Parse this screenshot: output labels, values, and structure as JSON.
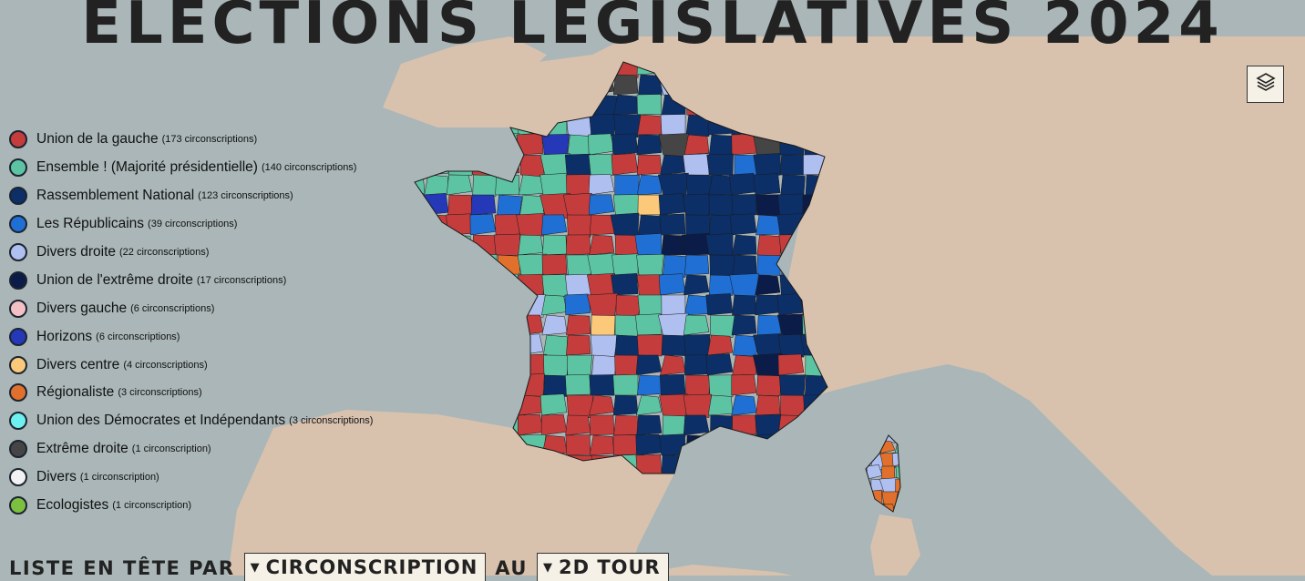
{
  "title": "ÉLECTIONS LÉGISLATIVES 2024",
  "icons": {
    "layers": "layers-icon"
  },
  "colors": {
    "sea": "#aab6b7",
    "land": "#d8c2ae",
    "department_border": "#1a1a1a"
  },
  "legend": [
    {
      "name": "Union de la gauche",
      "count": "(173 circonscriptions)",
      "color": "#c43c3c"
    },
    {
      "name": "Ensemble ! (Majorité présidentielle)",
      "count": "(140 circonscriptions)",
      "color": "#5cc4a2"
    },
    {
      "name": "Rassemblement National",
      "count": "(123 circonscriptions)",
      "color": "#0c2f68"
    },
    {
      "name": "Les Républicains",
      "count": "(39 circonscriptions)",
      "color": "#1f6fd4"
    },
    {
      "name": "Divers droite",
      "count": "(22 circonscriptions)",
      "color": "#aebff0"
    },
    {
      "name": "Union de l'extrême droite",
      "count": "(17 circonscriptions)",
      "color": "#0c1c48"
    },
    {
      "name": "Divers gauche",
      "count": "(6 circonscriptions)",
      "color": "#f3c0c4"
    },
    {
      "name": "Horizons",
      "count": "(6 circonscriptions)",
      "color": "#2438b8"
    },
    {
      "name": "Divers centre",
      "count": "(4 circonscriptions)",
      "color": "#fcc87a"
    },
    {
      "name": "Régionaliste",
      "count": "(3 circonscriptions)",
      "color": "#e0702c"
    },
    {
      "name": "Union des Démocrates et Indépendants",
      "count": "(3 circonscriptions)",
      "color": "#6ef0f0"
    },
    {
      "name": "Extrême droite",
      "count": "(1 circonscription)",
      "color": "#454545"
    },
    {
      "name": "Divers",
      "count": "(1 circonscription)",
      "color": "#f2f2f2"
    },
    {
      "name": "Ecologistes",
      "count": "(1 circonscription)",
      "color": "#7cc040"
    }
  ],
  "controls": {
    "prefix": "LISTE EN TÊTE PAR",
    "level": "CIRCONSCRIPTION",
    "connector": "AU",
    "round": "2D TOUR",
    "caret": "▼"
  }
}
